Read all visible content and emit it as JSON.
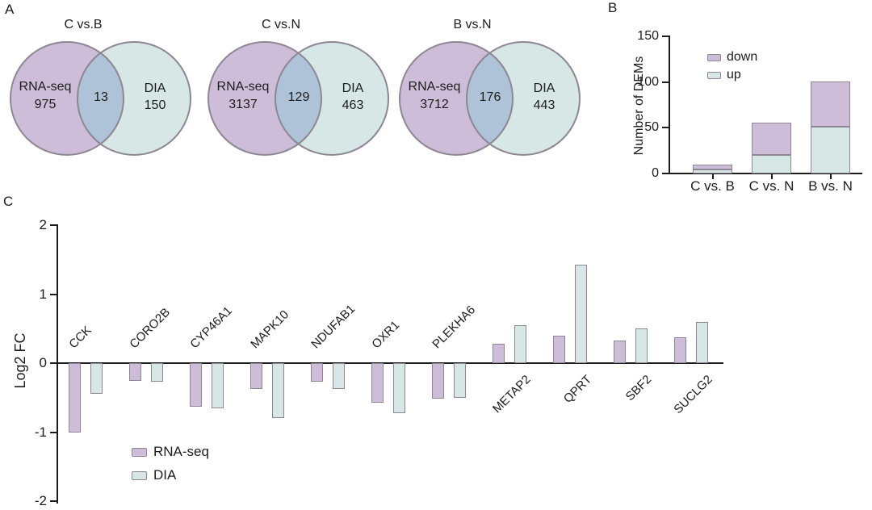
{
  "panel_labels": {
    "a": "A",
    "b": "B",
    "c": "C"
  },
  "colors": {
    "purple_fill": "#cdbdd9",
    "teal_fill": "#d6e7e5",
    "overlap_fill": "#aec3d7",
    "shape_border": "#8d8793",
    "axis_color": "#1c1c1c"
  },
  "chart_data": [
    {
      "type": "venn",
      "panel": "A",
      "diagrams": [
        {
          "title": "C vs.B",
          "left_label": "RNA-seq",
          "left_value": "975",
          "overlap_value": "13",
          "right_label": "DIA",
          "right_value": "150"
        },
        {
          "title": "C vs.N",
          "left_label": "RNA-seq",
          "left_value": "3137",
          "overlap_value": "129",
          "right_label": "DIA",
          "right_value": "463"
        },
        {
          "title": "B vs.N",
          "left_label": "RNA-seq",
          "left_value": "3712",
          "overlap_value": "176",
          "right_label": "DIA",
          "right_value": "443"
        }
      ]
    },
    {
      "type": "bar",
      "subtype": "stacked",
      "panel": "B",
      "title": "",
      "categories": [
        "C vs. B",
        "C vs. N",
        "B vs. N"
      ],
      "series": [
        {
          "name": "down",
          "color": "#cdbdd9",
          "values": [
            6,
            36,
            50
          ]
        },
        {
          "name": "up",
          "color": "#d6e7e5",
          "values": [
            4,
            20,
            51
          ]
        }
      ],
      "ylabel": "Number of DEMs",
      "xlabel": "",
      "ylim": [
        0,
        150
      ],
      "yticks": [
        0,
        50,
        100,
        150
      ],
      "grid": false,
      "legend_position": "top-left-inside"
    },
    {
      "type": "bar",
      "subtype": "grouped",
      "panel": "C",
      "title": "",
      "categories": [
        "CCK",
        "CORO2B",
        "CYP46A1",
        "MAPK10",
        "NDUFAB1",
        "OXR1",
        "PLEKHA6",
        "METAP2",
        "QPRT",
        "SBF2",
        "SUCLG2"
      ],
      "series": [
        {
          "name": "RNA-seq",
          "color": "#cdbdd9",
          "values": [
            -1.0,
            -0.26,
            -0.63,
            -0.38,
            -0.27,
            -0.57,
            -0.52,
            0.28,
            0.4,
            0.33,
            0.38
          ]
        },
        {
          "name": "DIA",
          "color": "#d6e7e5",
          "values": [
            -0.45,
            -0.27,
            -0.65,
            -0.8,
            -0.37,
            -0.72,
            -0.5,
            0.55,
            1.43,
            0.5,
            0.6
          ]
        }
      ],
      "ylabel": "Log2 FC",
      "xlabel": "",
      "ylim": [
        -2,
        2
      ],
      "yticks": [
        2,
        1,
        0,
        -1,
        -2
      ],
      "grid": false,
      "legend_position": "bottom-left-inside"
    }
  ]
}
